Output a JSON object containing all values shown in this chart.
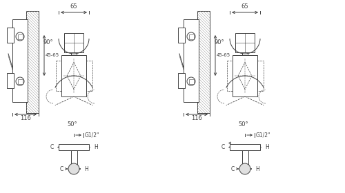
{
  "bg_color": "#ffffff",
  "line_color": "#404040",
  "hatch_color": "#888888",
  "fig_width": 5.0,
  "fig_height": 2.8,
  "dpi": 100,
  "labels": {
    "dim_65": "65",
    "dim_90": "90°",
    "dim_4565": "45-65",
    "dim_116": "116",
    "dim_50": "50°",
    "dim_g12": "G1/2\"",
    "label_C": "C",
    "label_H": "H"
  }
}
